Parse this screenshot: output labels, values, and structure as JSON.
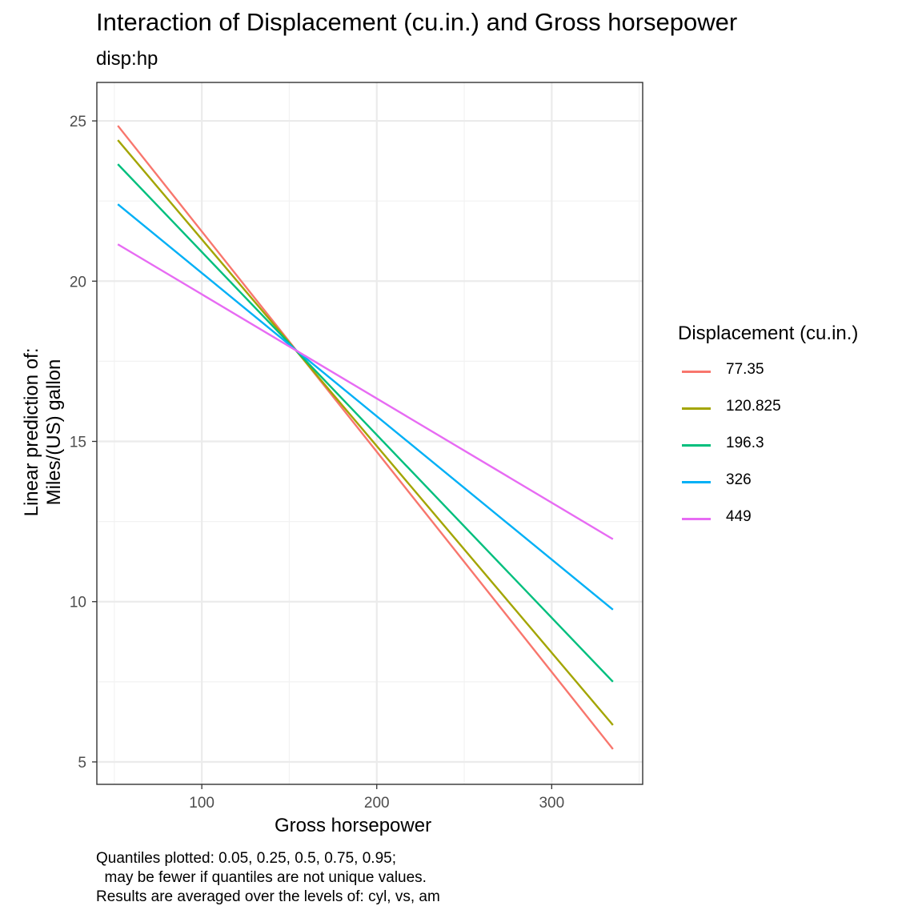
{
  "chart_data": {
    "type": "line",
    "title": "Interaction of Displacement (cu.in.) and Gross horsepower",
    "subtitle": "disp:hp",
    "xlabel": "Gross horsepower",
    "ylabel_lines": [
      "Linear prediction of:",
      "Miles/(US) gallon"
    ],
    "xlim": [
      40,
      352
    ],
    "ylim": [
      4.3,
      26.2
    ],
    "x_ticks": [
      100,
      200,
      300
    ],
    "y_ticks": [
      5,
      10,
      15,
      20,
      25
    ],
    "x_minor": [
      50,
      150,
      250,
      350
    ],
    "y_minor": [
      7.5,
      12.5,
      17.5,
      22.5
    ],
    "grid": true,
    "legend": {
      "title": "Displacement (cu.in.)",
      "placement": "right"
    },
    "x": [
      52,
      335
    ],
    "series": [
      {
        "name": "77.35",
        "color": "#F8766D",
        "values": [
          24.85,
          5.4
        ]
      },
      {
        "name": "120.825",
        "color": "#A3A500",
        "values": [
          24.4,
          6.15
        ]
      },
      {
        "name": "196.3",
        "color": "#00BF7D",
        "values": [
          23.65,
          7.5
        ]
      },
      {
        "name": "326",
        "color": "#00B0F6",
        "values": [
          22.4,
          9.75
        ]
      },
      {
        "name": "449",
        "color": "#E76BF3",
        "values": [
          21.15,
          11.95
        ]
      }
    ],
    "caption": "Quantiles plotted: 0.05, 0.25, 0.5, 0.75, 0.95;\n  may be fewer if quantiles are not unique values.\nResults are averaged over the levels of: cyl, vs, am"
  }
}
